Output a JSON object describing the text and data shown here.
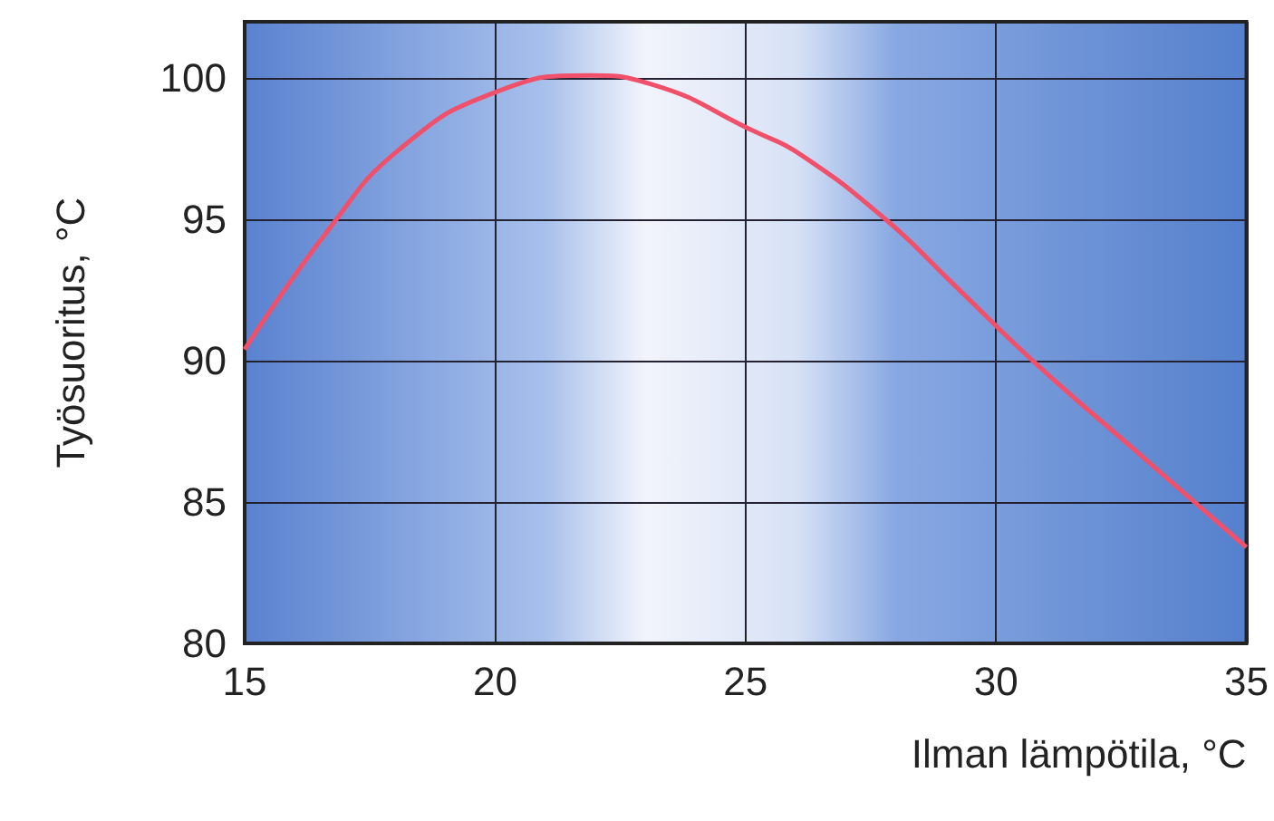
{
  "chart_data": {
    "type": "line",
    "xlabel": "Ilman lämpötila, °C",
    "ylabel": "Työsuoritus, °C",
    "series": [
      {
        "color": "#f0506a",
        "x": [
          15,
          16.7,
          18.1,
          20,
          21.9,
          23.1,
          25.2,
          26.1,
          27.8,
          29.1,
          30.8,
          32.8,
          35
        ],
        "values": [
          90.4,
          94.7,
          97.5,
          99.5,
          100.1,
          99.8,
          98.1,
          97.3,
          95.0,
          92.8,
          89.9,
          86.8,
          83.4
        ]
      }
    ],
    "xlim": [
      15,
      35
    ],
    "xticks": [
      15,
      20,
      25,
      30,
      35
    ],
    "ylim": [
      80,
      102
    ],
    "yticks": [
      80,
      85,
      90,
      95,
      100
    ],
    "grid": true,
    "marker": "none",
    "line_style": "solid"
  }
}
